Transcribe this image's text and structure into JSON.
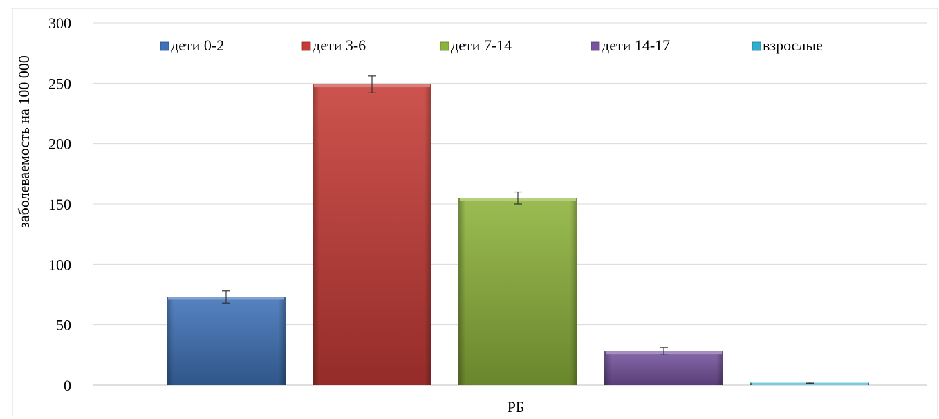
{
  "chart_data": {
    "type": "bar",
    "categories": [
      "РБ"
    ],
    "series": [
      {
        "name": "дети 0-2",
        "values": [
          73
        ],
        "error": [
          5
        ],
        "color": "#3F72B8"
      },
      {
        "name": "дети 3-6",
        "values": [
          249
        ],
        "error": [
          7
        ],
        "color": "#C63B36"
      },
      {
        "name": "дети 7-14",
        "values": [
          155
        ],
        "error": [
          5
        ],
        "color": "#8DB33A"
      },
      {
        "name": "дети 14-17",
        "values": [
          28
        ],
        "error": [
          3
        ],
        "color": "#7654A0"
      },
      {
        "name": "взрослые",
        "values": [
          2
        ],
        "error": [
          0.5
        ],
        "color": "#2FAFD0"
      }
    ],
    "title": "",
    "xlabel": "РБ",
    "ylabel": "заболеваемость на 100 000",
    "ylim": [
      0,
      300
    ],
    "yticks": [
      "0",
      "50",
      "100",
      "150",
      "200",
      "250",
      "300"
    ],
    "grid": true,
    "legend_position": "top"
  }
}
